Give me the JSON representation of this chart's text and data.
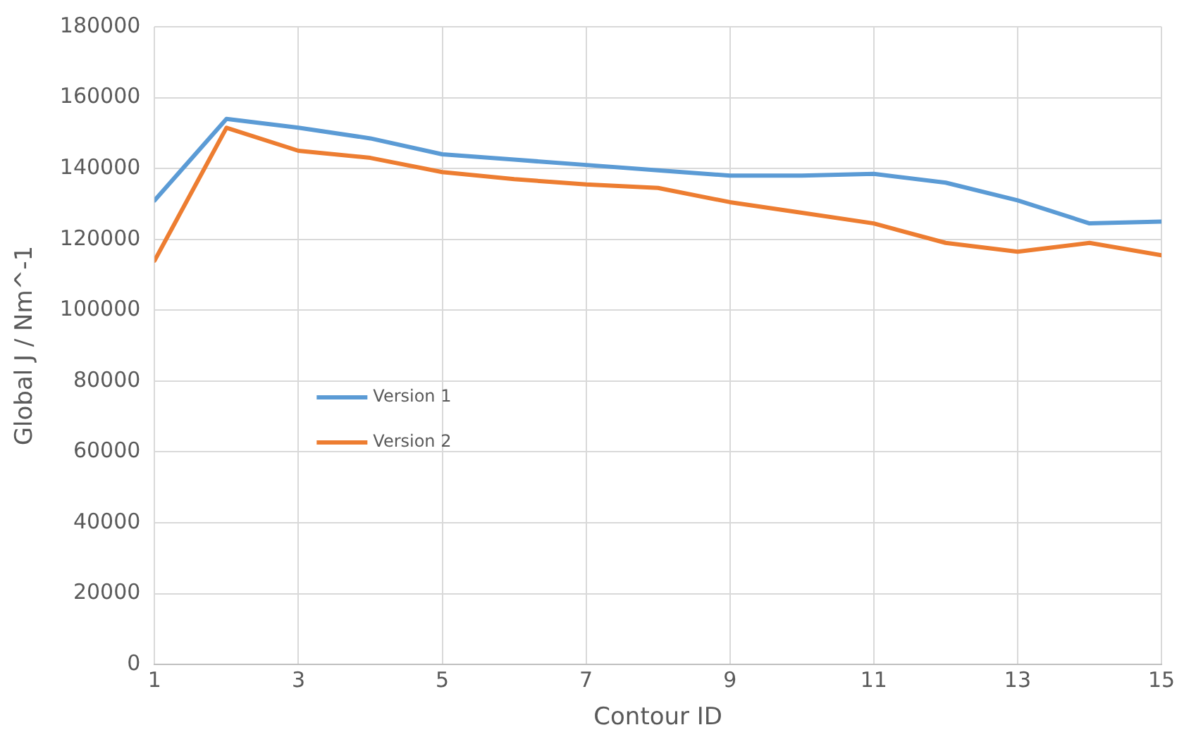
{
  "chart_data": {
    "type": "line",
    "xlabel": "Contour ID",
    "ylabel": "Global J / Nm^-1",
    "x": [
      1,
      2,
      3,
      4,
      5,
      6,
      7,
      8,
      9,
      10,
      11,
      12,
      13,
      14,
      15
    ],
    "series": [
      {
        "name": "Version 1",
        "color": "#5b9bd5",
        "values": [
          131000,
          154000,
          151500,
          148500,
          144000,
          142500,
          141000,
          139500,
          138000,
          138000,
          138500,
          136000,
          131000,
          124500,
          125000
        ]
      },
      {
        "name": "Version 2",
        "color": "#ed7d31",
        "values": [
          114000,
          151500,
          145000,
          143000,
          139000,
          137000,
          135500,
          134500,
          130500,
          127500,
          124500,
          119000,
          116500,
          119000,
          115500
        ]
      }
    ],
    "xlim": [
      1,
      15
    ],
    "xticks": [
      1,
      3,
      5,
      7,
      9,
      11,
      13,
      15
    ],
    "ylim": [
      0,
      180000
    ],
    "yticks": [
      0,
      20000,
      40000,
      60000,
      80000,
      100000,
      120000,
      140000,
      160000,
      180000
    ],
    "grid": true,
    "legend": "left",
    "marker": "none",
    "line_style": "solid"
  }
}
